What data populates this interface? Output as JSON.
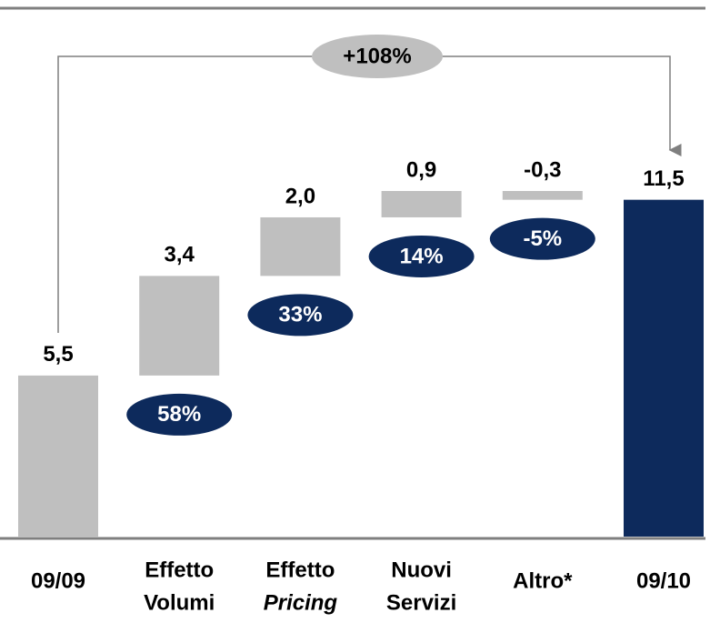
{
  "chart_data": {
    "type": "waterfall",
    "categories": [
      [
        "09/09"
      ],
      [
        "Effetto",
        "Volumi"
      ],
      [
        "Effetto",
        "Pricing"
      ],
      [
        "Nuovi",
        "Servizi"
      ],
      [
        "Altro*"
      ],
      [
        "09/10"
      ]
    ],
    "values": [
      5.5,
      3.4,
      2.0,
      0.9,
      -0.3,
      11.5
    ],
    "value_labels": [
      "5,5",
      "3,4",
      "2,0",
      "0,9",
      "-0,3",
      "11,5"
    ],
    "colors": [
      "#bfbfbf",
      "#bfbfbf",
      "#bfbfbf",
      "#bfbfbf",
      "#bfbfbf",
      "#0d2a5c"
    ],
    "share_labels": [
      "58%",
      "33%",
      "14%",
      "-5%"
    ],
    "annotation": "+108%"
  }
}
